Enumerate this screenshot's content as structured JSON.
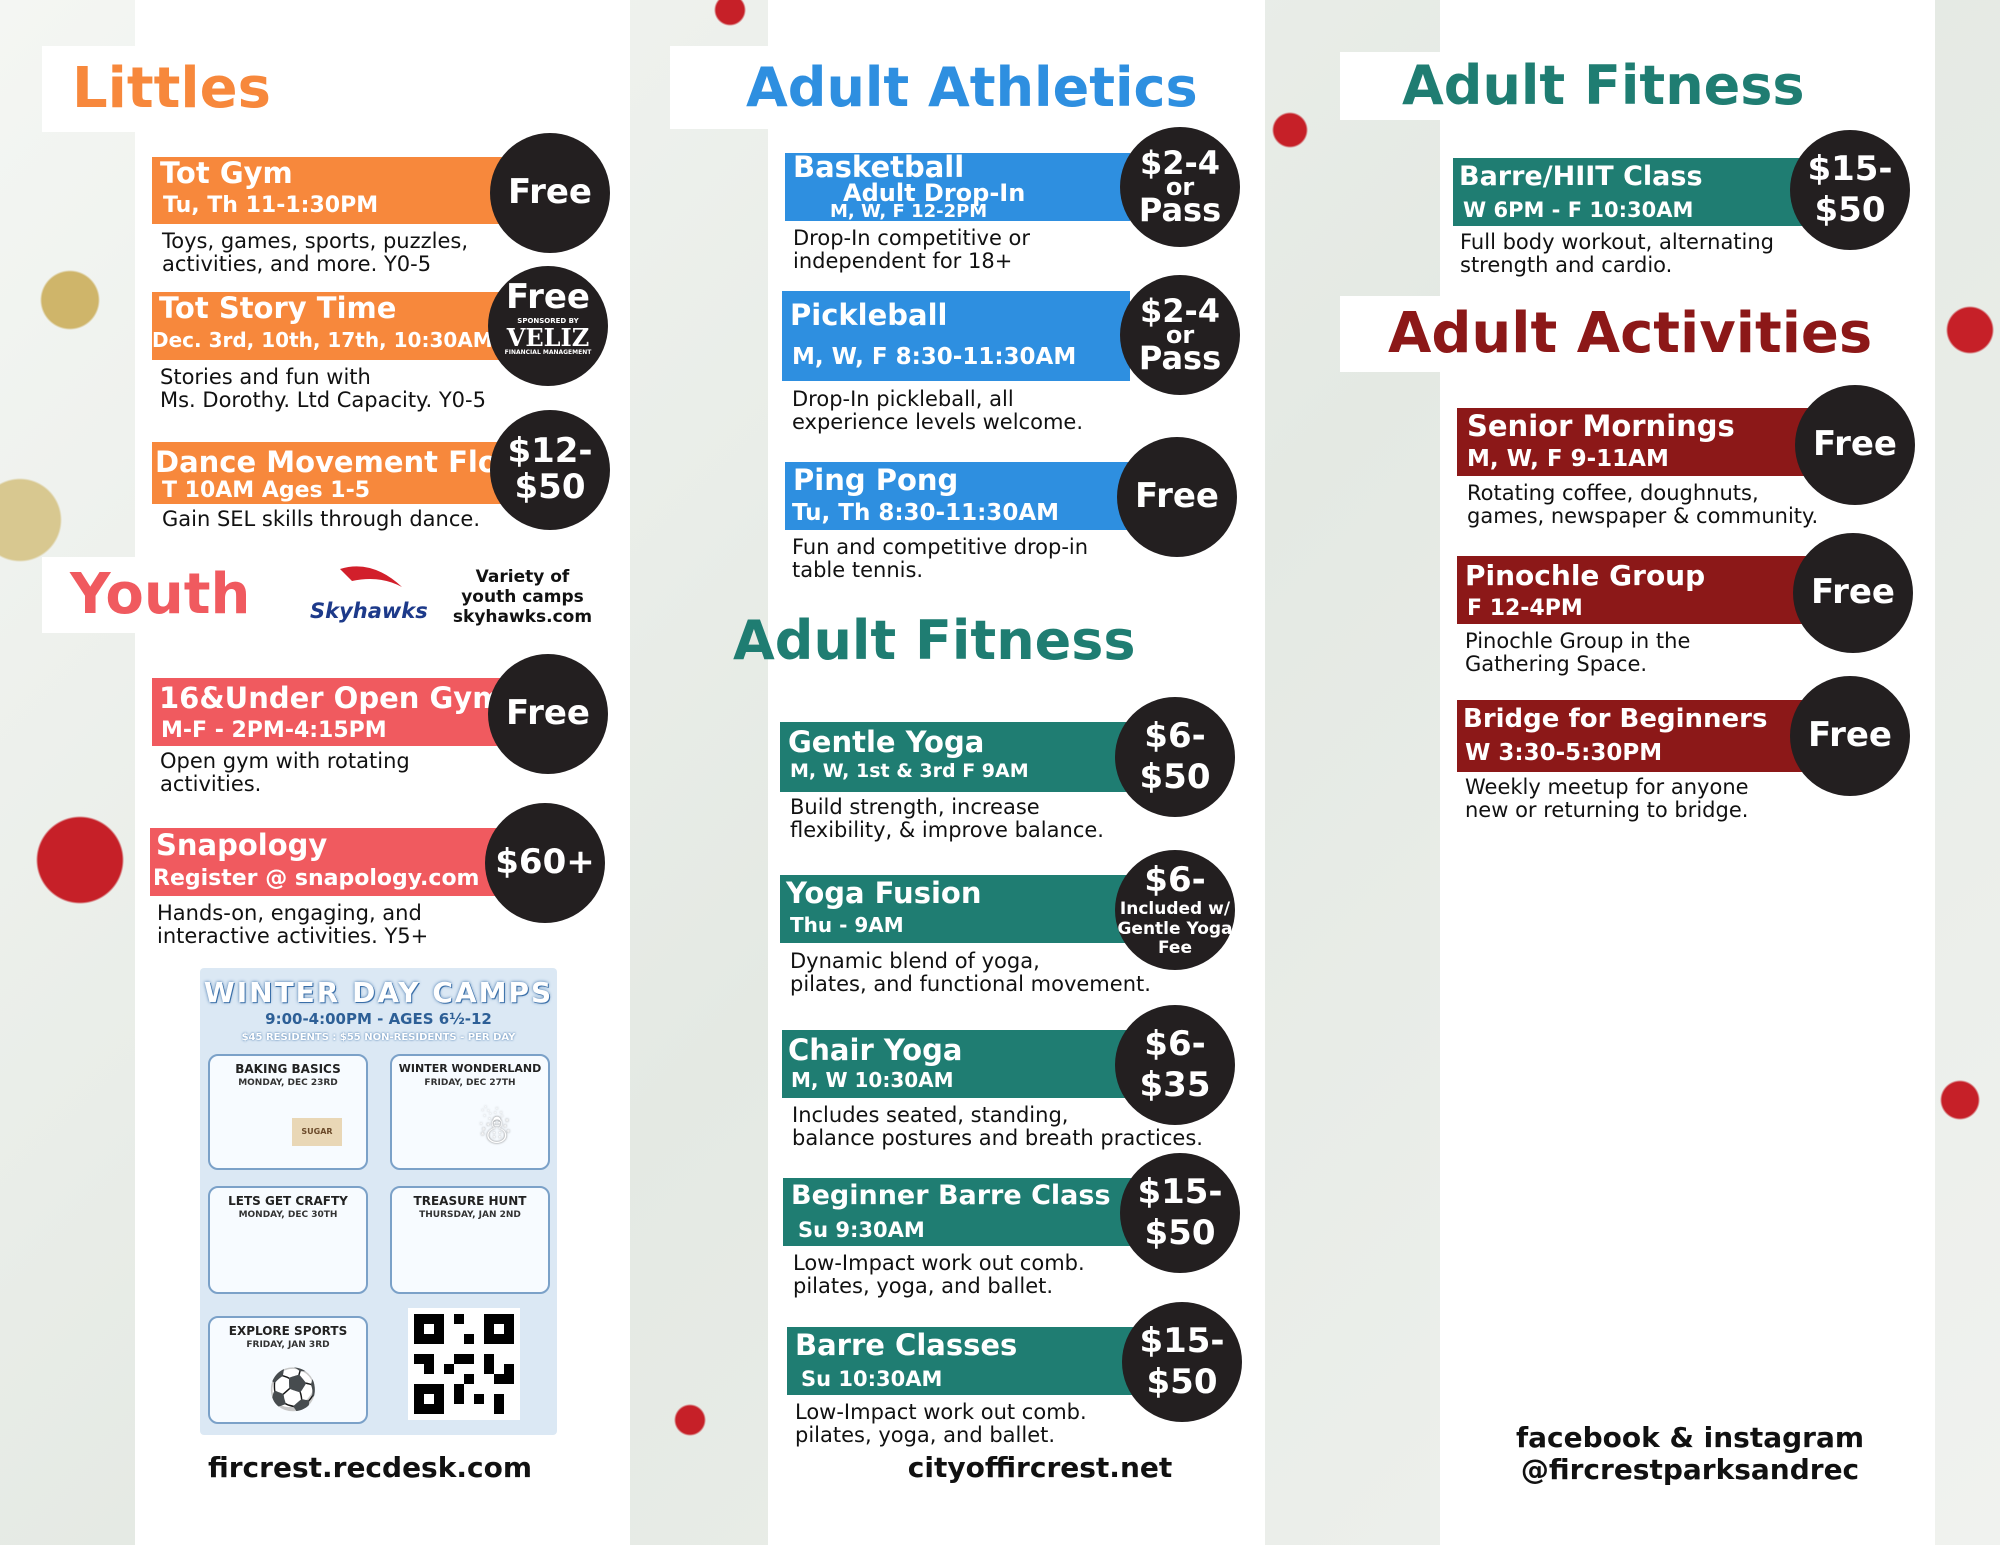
{
  "littles": {
    "title": "Littles",
    "events": [
      {
        "title": "Tot Gym",
        "sub": "Tu, Th 11-1:30PM",
        "price": "Free",
        "desc": [
          "Toys, games, sports, puzzles,",
          "activities, and more. Y0-5"
        ]
      },
      {
        "title": "Tot Story Time",
        "sub": "Dec. 3rd, 10th, 17th, 10:30AM",
        "price": "Free",
        "sponsor_label": "SPONSORED BY",
        "sponsor_name": "VELIZ",
        "sponsor_sub": "FINANCIAL MANAGEMENT",
        "desc": [
          "Stories and fun with",
          "Ms. Dorothy. Ltd Capacity. Y0-5"
        ]
      },
      {
        "title": "Dance Movement Flow",
        "sub": "T 10AM Ages 1-5",
        "price": [
          "$12-",
          "$50"
        ],
        "desc": [
          "Gain SEL skills through dance."
        ]
      }
    ]
  },
  "youth": {
    "title": "Youth",
    "skyhawks": "Skyhawks",
    "promo": [
      "Variety of",
      "youth camps",
      "skyhawks.com"
    ],
    "events": [
      {
        "title": "16&Under Open Gym",
        "sub": "M-F - 2PM-4:15PM",
        "price": "Free",
        "desc": [
          "Open gym with rotating",
          "activities."
        ]
      },
      {
        "title": "Snapology",
        "sub": "Register @ snapology.com",
        "price": "$60+",
        "desc": [
          "Hands-on, engaging, and",
          "interactive activities. Y5+"
        ]
      }
    ]
  },
  "camps": {
    "title": "WINTER DAY CAMPS",
    "sub": "9:00-4:00PM - AGES 6½-12",
    "prices": "$45 RESIDENTS : $55 NON-RESIDENTS - PER DAY",
    "cards": [
      {
        "name": "BAKING BASICS",
        "date": "MONDAY, DEC 23RD",
        "label": "SUGAR"
      },
      {
        "name": "WINTER WONDERLAND",
        "date": "FRIDAY, DEC 27TH"
      },
      {
        "name": "LETS GET CRAFTY",
        "date": "MONDAY, DEC 30TH"
      },
      {
        "name": "TREASURE HUNT",
        "date": "THURSDAY, JAN 2ND"
      },
      {
        "name": "EXPLORE SPORTS",
        "date": "FRIDAY, JAN 3RD"
      }
    ]
  },
  "footer": {
    "left": "fircrest.recdesk.com",
    "mid": "cityoffircrest.net",
    "right": [
      "facebook & instagram",
      "@fircrestparksandrec"
    ]
  },
  "athletics": {
    "title": "Adult Athletics",
    "events": [
      {
        "title": "Basketball",
        "sub2": "Adult Drop-In",
        "sub": "M, W, F 12-2PM",
        "price": [
          "$2-4",
          "or",
          "Pass"
        ],
        "desc": [
          "Drop-In competitive or",
          "independent for 18+"
        ]
      },
      {
        "title": "Pickleball",
        "sub": "M, W, F 8:30-11:30AM",
        "price": [
          "$2-4",
          "or",
          "Pass"
        ],
        "desc": [
          "Drop-In pickleball, all",
          "experience levels welcome."
        ]
      },
      {
        "title": "Ping Pong",
        "sub": "Tu, Th 8:30-11:30AM",
        "price": "Free",
        "desc": [
          "Fun and competitive drop-in",
          "table tennis."
        ]
      }
    ]
  },
  "fitness_mid": {
    "title": "Adult Fitness",
    "events": [
      {
        "title": "Gentle Yoga",
        "sub": "M, W, 1st & 3rd F 9AM",
        "price": [
          "$6-",
          "$50"
        ],
        "desc": [
          "Build strength, increase",
          "flexibility, & improve balance."
        ]
      },
      {
        "title": "Yoga Fusion",
        "sub": "Thu - 9AM",
        "price": [
          "$6-",
          "Included w/",
          "Gentle Yoga",
          "Fee"
        ],
        "desc": [
          "Dynamic blend of yoga,",
          "pilates, and functional movement."
        ]
      },
      {
        "title": "Chair Yoga",
        "sub": "M, W 10:30AM",
        "price": [
          "$6-",
          "$35"
        ],
        "desc": [
          "Includes seated, standing,",
          "balance postures and breath practices."
        ]
      },
      {
        "title": "Beginner Barre Class",
        "sub": "Su 9:30AM",
        "price": [
          "$15-",
          "$50"
        ],
        "desc": [
          "Low-Impact work out comb.",
          "pilates, yoga, and ballet."
        ]
      },
      {
        "title": "Barre Classes",
        "sub": "Su 10:30AM",
        "price": [
          "$15-",
          "$50"
        ],
        "desc": [
          "Low-Impact work out comb.",
          "pilates, yoga, and ballet."
        ]
      }
    ]
  },
  "fitness_right": {
    "title": "Adult Fitness",
    "events": [
      {
        "title": "Barre/HIIT Class",
        "sub": "W 6PM - F 10:30AM",
        "price": [
          "$15-",
          "$50"
        ],
        "desc": [
          "Full body workout, alternating",
          "strength and cardio."
        ]
      }
    ]
  },
  "activities": {
    "title": "Adult Activities",
    "events": [
      {
        "title": "Senior Mornings",
        "sub": "M, W, F 9-11AM",
        "price": "Free",
        "desc": [
          "Rotating coffee, doughnuts,",
          "games, newspaper & community."
        ]
      },
      {
        "title": "Pinochle Group",
        "sub": "F  12-4PM",
        "price": "Free",
        "desc": [
          "Pinochle Group in the",
          "Gathering Space."
        ]
      },
      {
        "title": "Bridge for Beginners",
        "sub": "W 3:30-5:30PM",
        "price": "Free",
        "desc": [
          "Weekly meetup for anyone",
          "new or returning to bridge."
        ]
      }
    ]
  },
  "colors": {
    "orange": "#f7883c",
    "coral": "#f05a5f",
    "blue": "#2e8fe0",
    "teal": "#1f7d72",
    "maroon": "#8c1818",
    "circle": "#231f20"
  }
}
